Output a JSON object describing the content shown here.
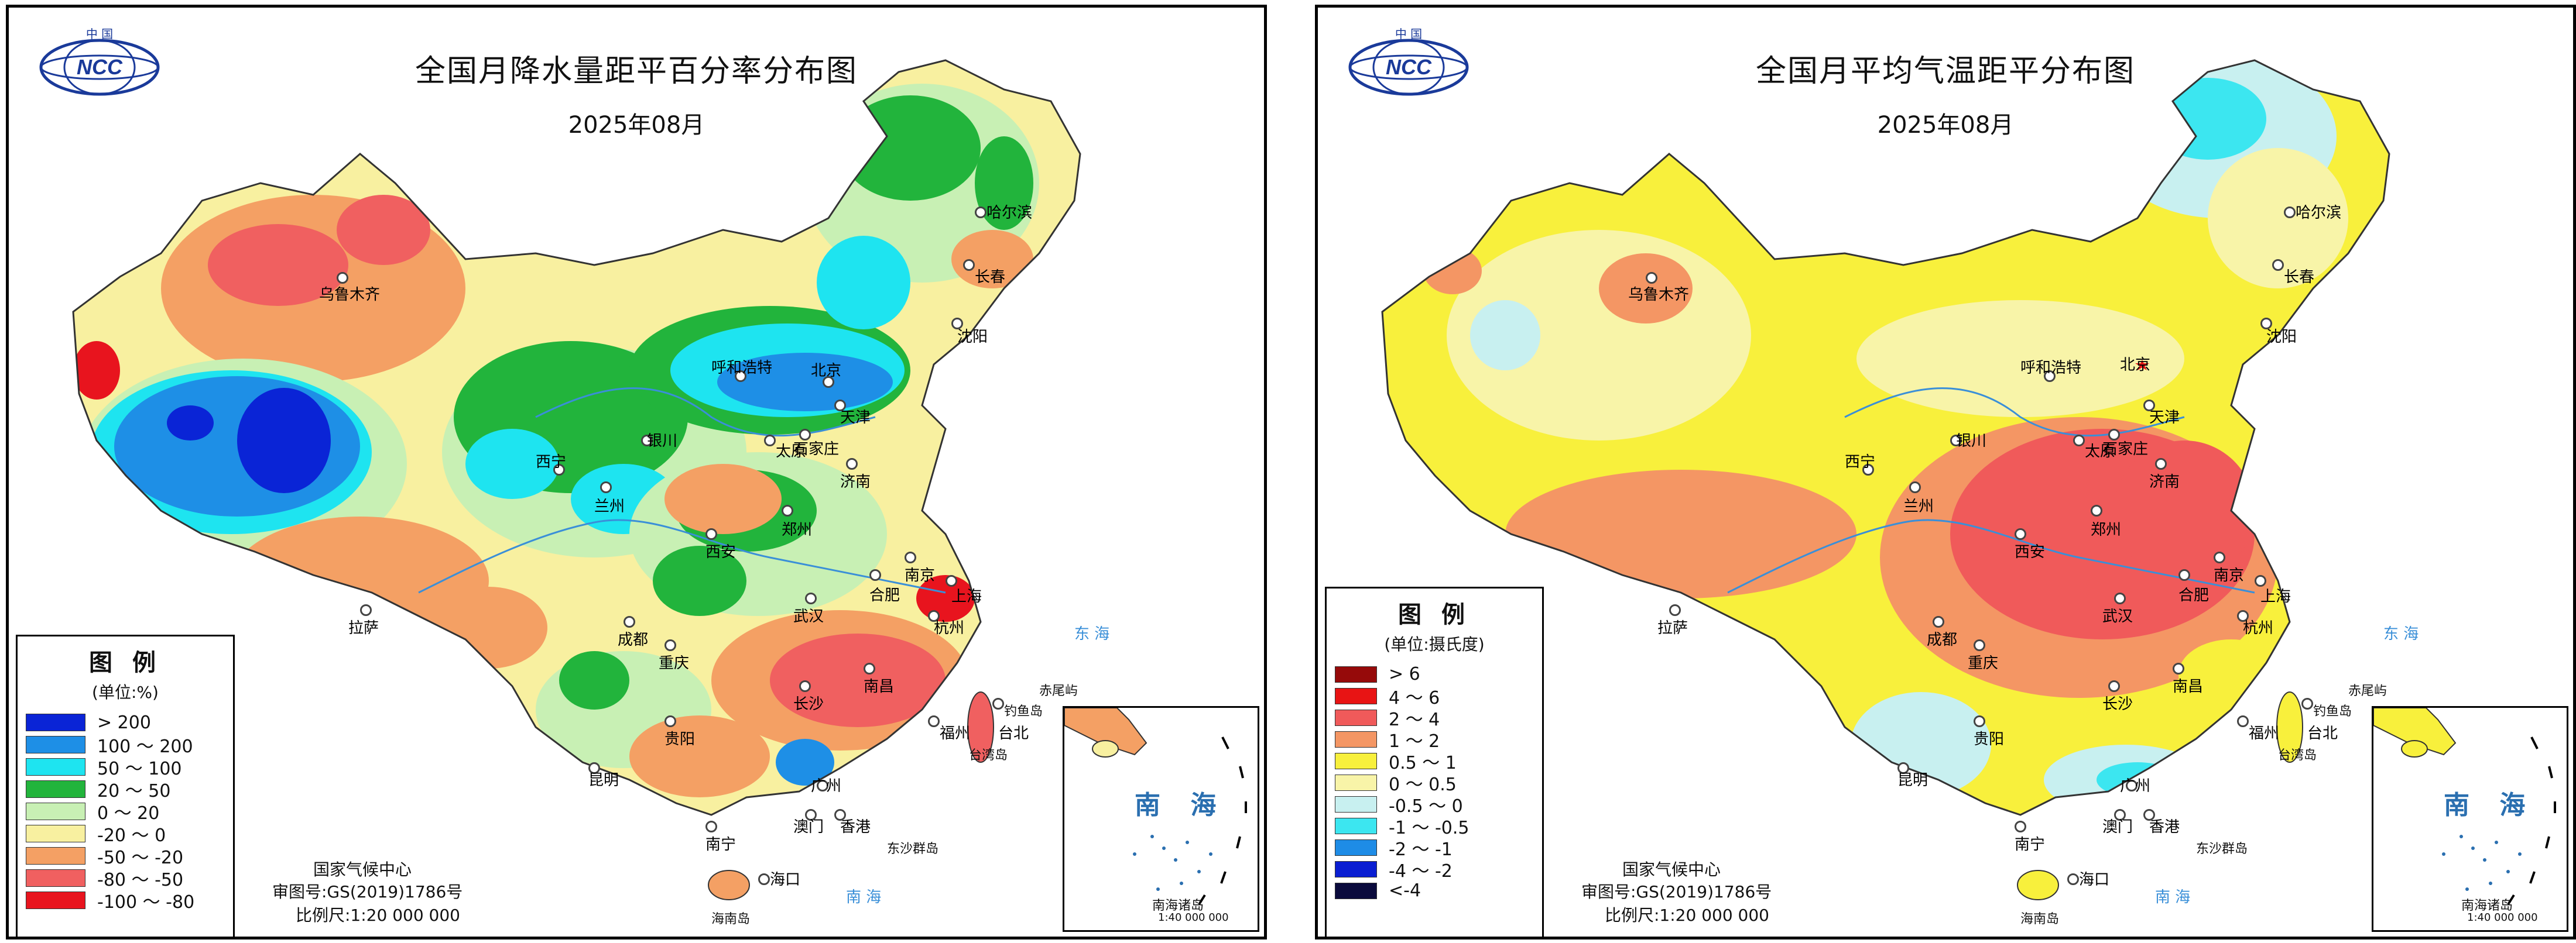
{
  "logo": {
    "top_text": "中 国",
    "mark": "NCC"
  },
  "footer": {
    "org": "国家气候中心",
    "approval": "审图号:GS(2019)1786号",
    "scale": "比例尺:1:20 000 000"
  },
  "inset": {
    "name": "南海诸岛",
    "scale": "1:40 000 000",
    "sea_label": "南 海"
  },
  "seas": {
    "east": "东 海",
    "south": "南 海"
  },
  "islands": {
    "diaoyu": "钓鱼岛",
    "chiwei": "赤尾屿",
    "dongsha": "东沙群岛",
    "taiwan": "台湾岛",
    "hainan": "海南岛"
  },
  "cities": [
    {
      "name": "乌鲁木齐"
    },
    {
      "name": "哈尔滨"
    },
    {
      "name": "长春"
    },
    {
      "name": "沈阳"
    },
    {
      "name": "呼和浩特"
    },
    {
      "name": "北京"
    },
    {
      "name": "天津"
    },
    {
      "name": "银川"
    },
    {
      "name": "太原"
    },
    {
      "name": "石家庄"
    },
    {
      "name": "西宁"
    },
    {
      "name": "兰州"
    },
    {
      "name": "济南"
    },
    {
      "name": "郑州"
    },
    {
      "name": "西安"
    },
    {
      "name": "南京"
    },
    {
      "name": "合肥"
    },
    {
      "name": "上海"
    },
    {
      "name": "杭州"
    },
    {
      "name": "武汉"
    },
    {
      "name": "成都"
    },
    {
      "name": "重庆"
    },
    {
      "name": "拉萨"
    },
    {
      "name": "长沙"
    },
    {
      "name": "南昌"
    },
    {
      "name": "贵阳"
    },
    {
      "name": "福州"
    },
    {
      "name": "台北"
    },
    {
      "name": "昆明"
    },
    {
      "name": "南宁"
    },
    {
      "name": "广州"
    },
    {
      "name": "澳门"
    },
    {
      "name": "香港"
    },
    {
      "name": "海口"
    }
  ],
  "maps": [
    {
      "title": "全国月降水量距平百分率分布图",
      "date": "2025年08月",
      "legend": {
        "title": "图 例",
        "unit": "(单位:%)",
        "items": [
          {
            "label": "> 200",
            "color": "#0a24d6"
          },
          {
            "label": "100 ～ 200",
            "color": "#1e8fe6"
          },
          {
            "label": "50 ～ 100",
            "color": "#1ee4f0"
          },
          {
            "label": "20 ～ 50",
            "color": "#22b43c"
          },
          {
            "label": "0 ～ 20",
            "color": "#c8f0b4"
          },
          {
            "label": "-20 ～ 0",
            "color": "#f8f0a0"
          },
          {
            "label": "-50 ～ -20",
            "color": "#f4a064"
          },
          {
            "label": "-80 ～ -50",
            "color": "#f06060"
          },
          {
            "label": "-100 ～ -80",
            "color": "#e8141e"
          }
        ]
      }
    },
    {
      "title": "全国月平均气温距平分布图",
      "date": "2025年08月",
      "legend": {
        "title": "图 例",
        "unit": "(单位:摄氏度)",
        "items": [
          {
            "label": "> 6",
            "color": "#960a0a"
          },
          {
            "label": "4 ～ 6",
            "color": "#e81414"
          },
          {
            "label": "2 ～ 4",
            "color": "#f05a5a"
          },
          {
            "label": "1 ～ 2",
            "color": "#f49664"
          },
          {
            "label": "0.5 ～ 1",
            "color": "#f8f03c"
          },
          {
            "label": "0 ～ 0.5",
            "color": "#f8f4a8"
          },
          {
            "label": "-0.5 ～ 0",
            "color": "#c8f0f0"
          },
          {
            "label": "-1 ～ -0.5",
            "color": "#3ce6f0"
          },
          {
            "label": "-2 ～ -1",
            "color": "#1e8ce6"
          },
          {
            "label": "-4 ～ -2",
            "color": "#0a1ed2"
          },
          {
            "label": "<-4",
            "color": "#0a0a3c"
          }
        ]
      }
    }
  ]
}
